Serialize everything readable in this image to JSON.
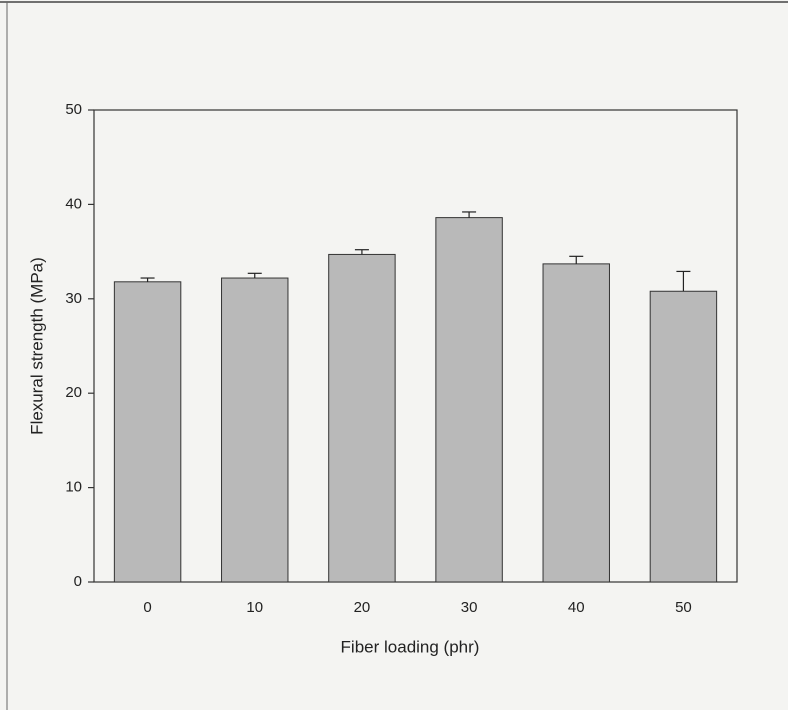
{
  "chart_data": {
    "type": "bar",
    "xlabel": "Fiber loading (phr)",
    "ylabel": "Flexural strength (MPa)",
    "categories": [
      "0",
      "10",
      "20",
      "30",
      "40",
      "50"
    ],
    "values": [
      31.8,
      32.2,
      34.7,
      38.6,
      33.7,
      30.8
    ],
    "errors": [
      0.4,
      0.5,
      0.5,
      0.6,
      0.8,
      2.1
    ],
    "color": "#b9b9b9",
    "ylim": [
      0,
      50
    ],
    "yticks": [
      0,
      10,
      20,
      30,
      40,
      50
    ]
  }
}
